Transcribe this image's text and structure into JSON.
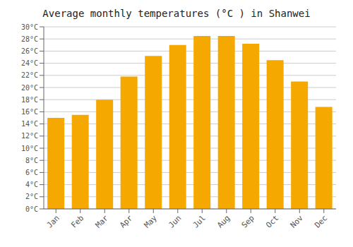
{
  "chart_data": {
    "type": "bar",
    "title": "Average monthly temperatures (°C ) in Shanwei",
    "categories": [
      "Jan",
      "Feb",
      "Mar",
      "Apr",
      "May",
      "Jun",
      "Jul",
      "Aug",
      "Sep",
      "Oct",
      "Nov",
      "Dec"
    ],
    "values": [
      15.0,
      15.5,
      18.0,
      21.8,
      25.2,
      27.0,
      28.5,
      28.5,
      27.2,
      24.5,
      21.0,
      16.8
    ],
    "color": "#F5A800",
    "ylim": [
      0,
      30
    ],
    "yticks": [
      {
        "value": 0,
        "label": "0°C"
      },
      {
        "value": 2,
        "label": "2°C"
      },
      {
        "value": 4,
        "label": "4°C"
      },
      {
        "value": 6,
        "label": "6°C"
      },
      {
        "value": 8,
        "label": "8°C"
      },
      {
        "value": 10,
        "label": "10°C"
      },
      {
        "value": 12,
        "label": "12°C"
      },
      {
        "value": 14,
        "label": "14°C"
      },
      {
        "value": 16,
        "label": "16°C"
      },
      {
        "value": 18,
        "label": "18°C"
      },
      {
        "value": 20,
        "label": "20°C"
      },
      {
        "value": 22,
        "label": "22°C"
      },
      {
        "value": 24,
        "label": "24°C"
      },
      {
        "value": 26,
        "label": "26°C"
      },
      {
        "value": 28,
        "label": "28°C"
      },
      {
        "value": 30,
        "label": "30°C"
      }
    ],
    "grid": true
  }
}
